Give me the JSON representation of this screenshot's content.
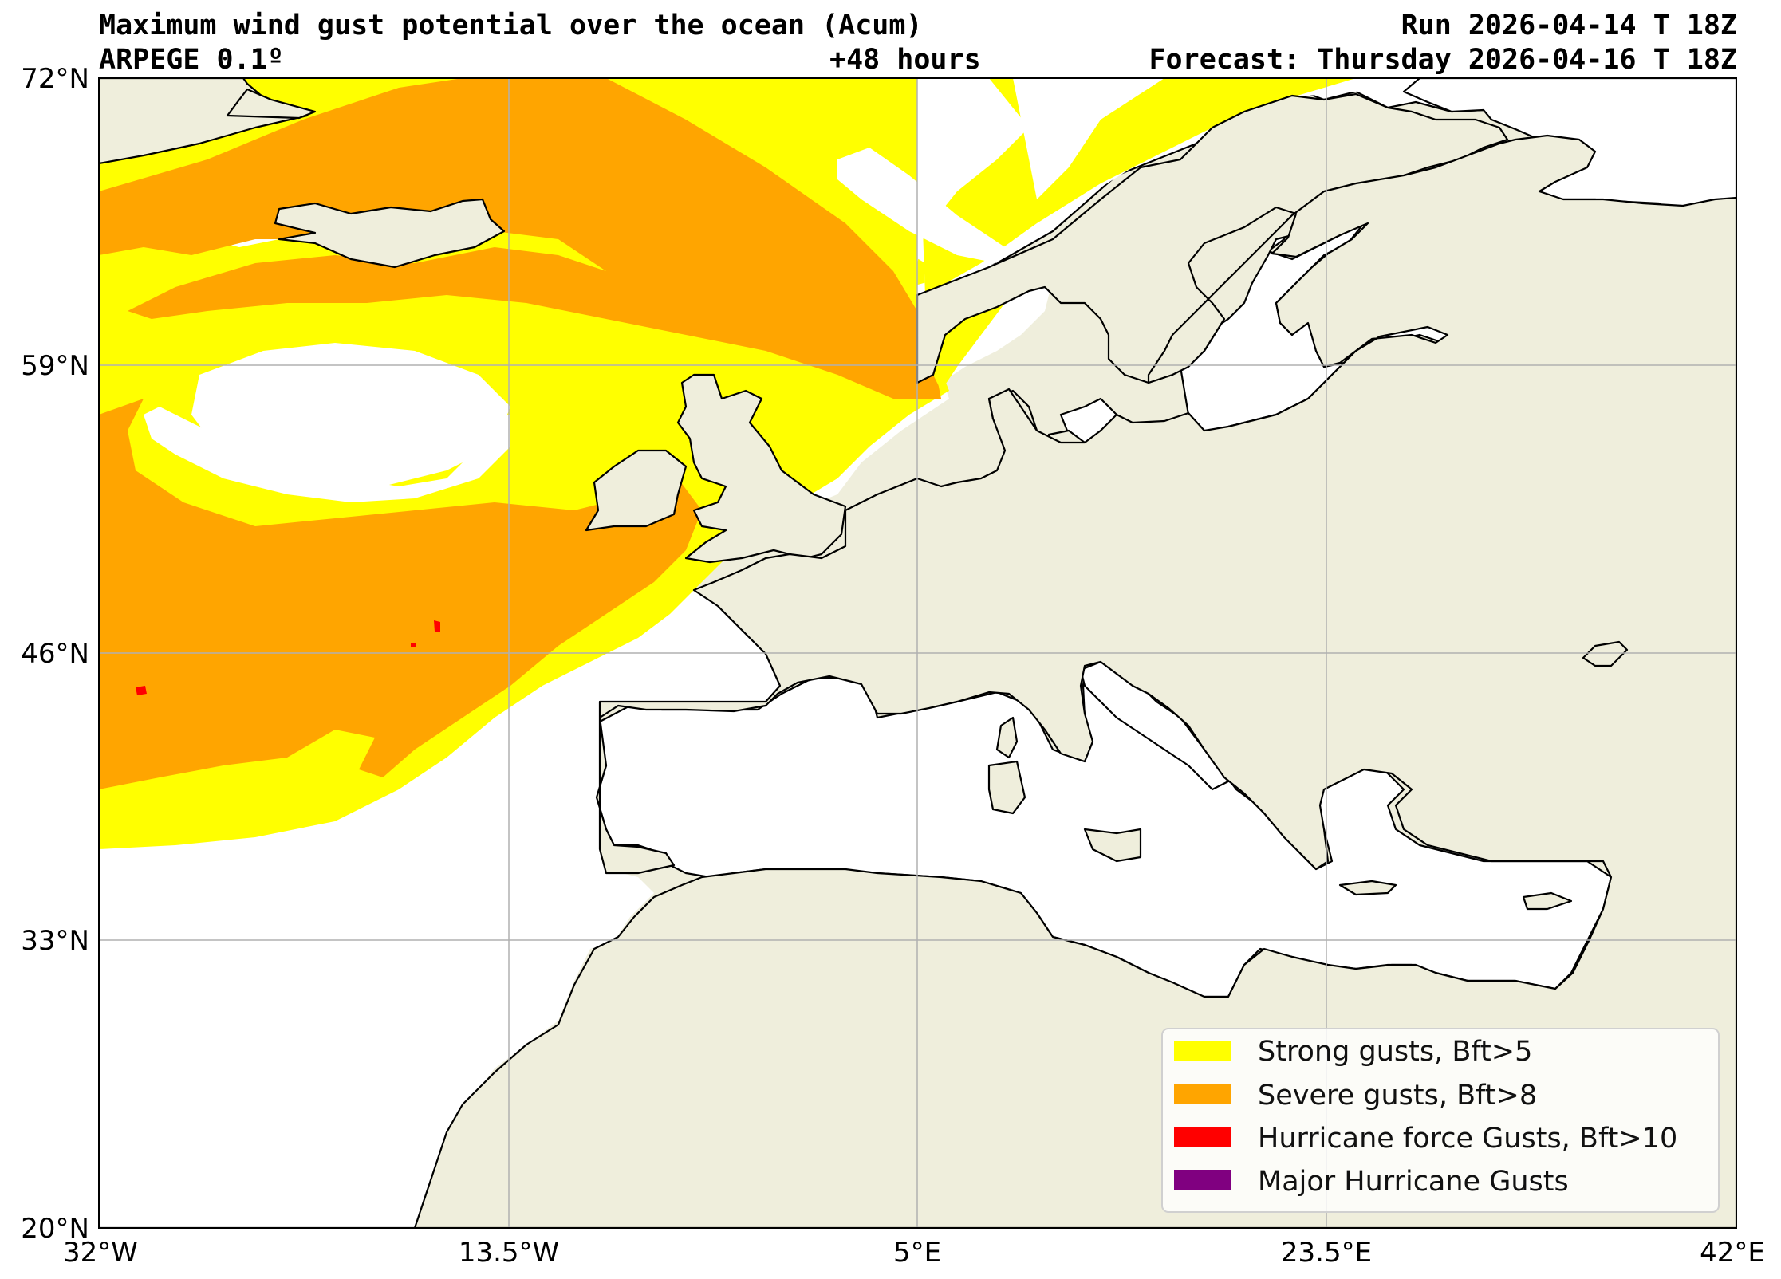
{
  "header": {
    "title": "Maximum wind gust potential over the ocean (Acum)",
    "model": "ARPEGE 0.1º",
    "lead": "+48 hours",
    "run": "Run 2026-04-14 T 18Z",
    "forecast": "Forecast: Thursday 2026-04-16 T 18Z"
  },
  "axes": {
    "lon_range": [
      -32,
      42
    ],
    "lat_range": [
      20,
      72
    ],
    "lon_ticks": [
      "32°W",
      "13.5°W",
      "5°E",
      "23.5°E",
      "42°E"
    ],
    "lat_ticks": [
      "72°N",
      "59°N",
      "46°N",
      "33°N",
      "20°N"
    ],
    "grid": true
  },
  "legend": {
    "placement": "bottom-right",
    "items": [
      {
        "label": "Strong gusts, Bft>5",
        "color": "#ffff00"
      },
      {
        "label": "Severe gusts, Bft>8",
        "color": "#ffa500"
      },
      {
        "label": "Hurricane force Gusts, Bft>10",
        "color": "#ff0000"
      },
      {
        "label": "Major Hurricane Gusts",
        "color": "#800080"
      }
    ]
  },
  "colors": {
    "land": "#efeedc",
    "sea": "#ffffff",
    "coast": "#000000",
    "grid": "#b0b0b0"
  }
}
